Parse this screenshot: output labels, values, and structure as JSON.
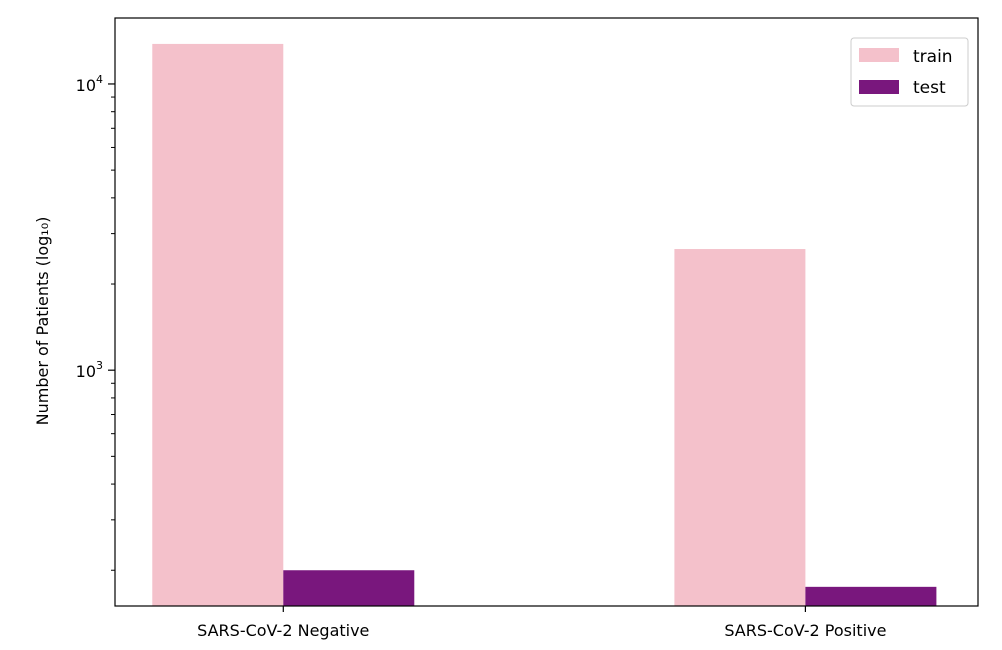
{
  "chart_data": {
    "type": "bar",
    "yscale": "log",
    "ylabel": "Number of Patients (log₁₀)",
    "ylim": [
      150,
      17000
    ],
    "categories": [
      "SARS-CoV-2 Negative",
      "SARS-CoV-2 Positive"
    ],
    "series": [
      {
        "name": "train",
        "color": "#f4c1cb",
        "values": [
          13800,
          2650
        ]
      },
      {
        "name": "test",
        "color": "#79177d",
        "values": [
          200,
          175
        ]
      }
    ],
    "y_ticks": [
      {
        "base": "10",
        "exp": "3",
        "value": 1000
      },
      {
        "base": "10",
        "exp": "4",
        "value": 10000
      }
    ],
    "grid": false,
    "legend": {
      "position": "top-right"
    }
  }
}
